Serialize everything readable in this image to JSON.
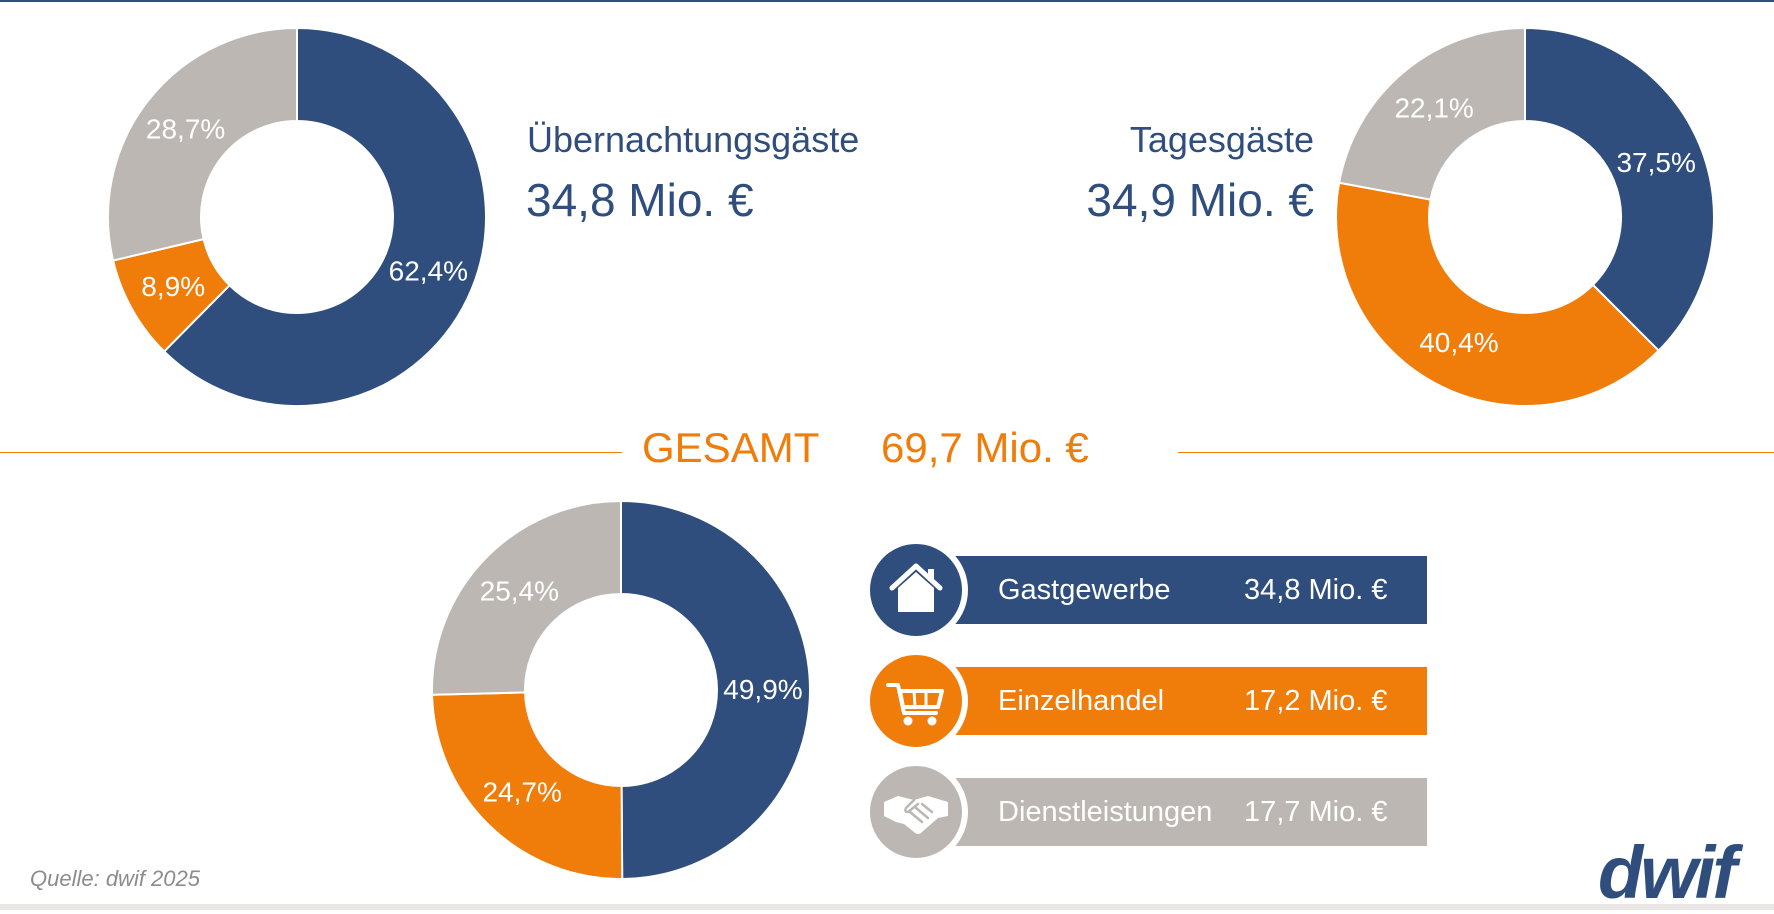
{
  "colors": {
    "navy": "#2f4e7e",
    "orange": "#f07c0a",
    "grey": "#bcb7b2"
  },
  "chart_data": [
    {
      "type": "pie",
      "title": "Übernachtungsgäste",
      "subtitle": "34,8 Mio. €",
      "series": [
        {
          "name": "Gastgewerbe",
          "value": 62.4,
          "label": "62,4%",
          "color": "#2f4e7e"
        },
        {
          "name": "Einzelhandel",
          "value": 8.9,
          "label": "8,9%",
          "color": "#f07c0a"
        },
        {
          "name": "Dienstleistungen",
          "value": 28.7,
          "label": "28,7%",
          "color": "#bcb7b2"
        }
      ]
    },
    {
      "type": "pie",
      "title": "Tagesgäste",
      "subtitle": "34,9 Mio. €",
      "series": [
        {
          "name": "Gastgewerbe",
          "value": 37.5,
          "label": "37,5%",
          "color": "#2f4e7e"
        },
        {
          "name": "Einzelhandel",
          "value": 40.4,
          "label": "40,4%",
          "color": "#f07c0a"
        },
        {
          "name": "Dienstleistungen",
          "value": 22.1,
          "label": "22,1%",
          "color": "#bcb7b2"
        }
      ]
    },
    {
      "type": "pie",
      "title": "GESAMT",
      "subtitle": "69,7 Mio. €",
      "series": [
        {
          "name": "Gastgewerbe",
          "value": 49.9,
          "label": "49,9%",
          "color": "#2f4e7e"
        },
        {
          "name": "Einzelhandel",
          "value": 24.7,
          "label": "24,7%",
          "color": "#f07c0a"
        },
        {
          "name": "Dienstleistungen",
          "value": 25.4,
          "label": "25,4%",
          "color": "#bcb7b2"
        }
      ]
    }
  ],
  "total": {
    "label": "GESAMT",
    "value": "69,7 Mio. €"
  },
  "categories": [
    {
      "label": "Gastgewerbe",
      "value": "34,8 Mio. €",
      "icon": "house-icon",
      "color": "#2f4e7e"
    },
    {
      "label": "Einzelhandel",
      "value": "17,2 Mio. €",
      "icon": "shopping-cart-icon",
      "color": "#f07c0a"
    },
    {
      "label": "Dienstleistungen",
      "value": "17,7 Mio. €",
      "icon": "handshake-icon",
      "color": "#bcb7b2"
    }
  ],
  "footer": {
    "source": "Quelle: dwif 2025",
    "logo": "dwif"
  }
}
